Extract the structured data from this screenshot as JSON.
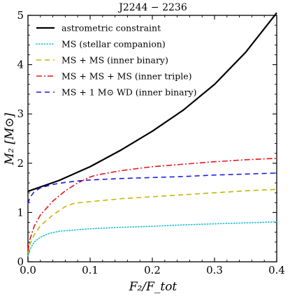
{
  "chart_data": {
    "type": "line",
    "title": "J2244 − 2236",
    "xlabel": "F₂/F_tot",
    "ylabel": "M₂ [M⊙]",
    "xlim": [
      0.0,
      0.4
    ],
    "ylim": [
      0,
      5
    ],
    "x_ticks": [
      0.0,
      0.1,
      0.2,
      0.3,
      0.4
    ],
    "x_tick_labels": [
      "0.0",
      "0.1",
      "0.2",
      "0.3",
      "0.4"
    ],
    "y_ticks": [
      0,
      1,
      2,
      3,
      4,
      5
    ],
    "y_tick_labels": [
      "0",
      "1",
      "2",
      "3",
      "4",
      "5"
    ],
    "grid": false,
    "legend_position": "top-left",
    "series": [
      {
        "name": "astrometric constraint",
        "color": "#000000",
        "dash": "solid",
        "x": [
          0.0,
          0.05,
          0.1,
          0.15,
          0.2,
          0.25,
          0.3,
          0.35,
          0.4
        ],
        "y": [
          1.43,
          1.65,
          1.93,
          2.27,
          2.65,
          3.08,
          3.6,
          4.25,
          5.05
        ]
      },
      {
        "name": "MS (stellar companion)",
        "color": "#17becf",
        "dash": "dotted",
        "x": [
          0.0,
          0.003,
          0.01,
          0.02,
          0.035,
          0.05,
          0.1,
          0.15,
          0.2,
          0.25,
          0.3,
          0.35,
          0.4
        ],
        "y": [
          0.12,
          0.25,
          0.4,
          0.5,
          0.58,
          0.62,
          0.67,
          0.7,
          0.72,
          0.75,
          0.77,
          0.79,
          0.81
        ]
      },
      {
        "name": "MS + MS (inner binary)",
        "color": "#c8b400",
        "dash": "dashed",
        "x": [
          0.0,
          0.003,
          0.01,
          0.02,
          0.04,
          0.06,
          0.075,
          0.1,
          0.15,
          0.2,
          0.25,
          0.3,
          0.35,
          0.4
        ],
        "y": [
          0.17,
          0.35,
          0.55,
          0.73,
          0.95,
          1.12,
          1.19,
          1.22,
          1.28,
          1.32,
          1.36,
          1.4,
          1.44,
          1.47
        ]
      },
      {
        "name": "MS + MS + MS (inner triple)",
        "color": "#e8141e",
        "dash": "dashdot",
        "x": [
          0.0,
          0.003,
          0.01,
          0.02,
          0.04,
          0.06,
          0.08,
          0.1,
          0.11,
          0.15,
          0.2,
          0.25,
          0.3,
          0.35,
          0.4
        ],
        "y": [
          0.22,
          0.45,
          0.72,
          0.95,
          1.23,
          1.44,
          1.6,
          1.72,
          1.76,
          1.85,
          1.93,
          1.98,
          2.03,
          2.07,
          2.1
        ]
      },
      {
        "name": "MS + 1 M⊙ WD (inner binary)",
        "color": "#1a1adc",
        "dash": "dashed",
        "x": [
          0.0,
          0.003,
          0.01,
          0.02,
          0.04,
          0.06,
          0.08,
          0.1,
          0.15,
          0.2,
          0.25,
          0.3,
          0.35,
          0.4
        ],
        "y": [
          1.18,
          1.3,
          1.42,
          1.5,
          1.57,
          1.61,
          1.64,
          1.66,
          1.69,
          1.71,
          1.73,
          1.76,
          1.78,
          1.8
        ]
      }
    ]
  }
}
